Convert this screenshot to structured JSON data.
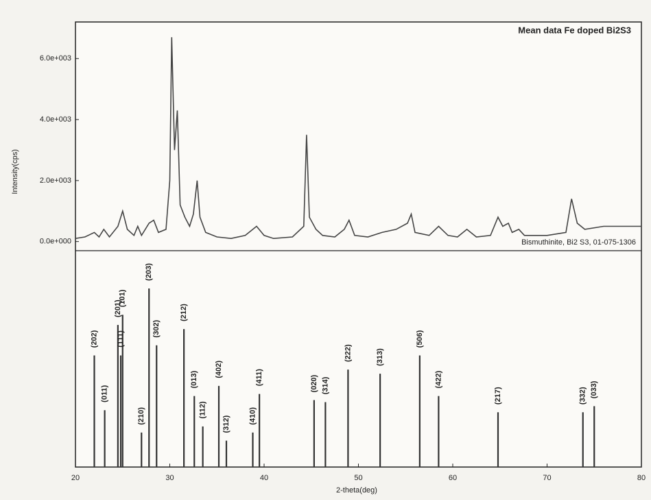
{
  "chart_data": [
    {
      "type": "line",
      "title": "Mean data Fe doped Bi2S3",
      "ylabel": "Intensity(cps)",
      "ylim": [
        -300,
        7200
      ],
      "yticks": [
        {
          "value": 0,
          "label": "0.0e+000"
        },
        {
          "value": 2000,
          "label": "2.0e+003"
        },
        {
          "value": 4000,
          "label": "4.0e+003"
        },
        {
          "value": 6000,
          "label": "6.0e+003"
        }
      ],
      "x": [
        20,
        21,
        22,
        22.5,
        23,
        23.6,
        24.5,
        25,
        25.5,
        26.2,
        26.6,
        27,
        27.8,
        28.3,
        28.8,
        29.6,
        30,
        30.2,
        30.5,
        30.8,
        31.1,
        31.6,
        32.1,
        32.5,
        32.9,
        33.2,
        33.8,
        35,
        36.5,
        38,
        39.2,
        40,
        41,
        43,
        44.2,
        44.5,
        44.8,
        45.5,
        46.2,
        47.5,
        48.5,
        49,
        49.6,
        51,
        52.5,
        54,
        55.2,
        55.6,
        56,
        57.5,
        58.5,
        59.5,
        60.5,
        61.5,
        62.5,
        64,
        64.8,
        65.3,
        65.9,
        66.3,
        67,
        67.6,
        70,
        72,
        72.6,
        73.2,
        74,
        76,
        78,
        80
      ],
      "series": [
        {
          "name": "Bismuthinite, Bi2 S3, 01-075-1306",
          "color": "#444444",
          "values": [
            100,
            150,
            300,
            150,
            400,
            150,
            500,
            1000,
            400,
            200,
            500,
            200,
            600,
            700,
            300,
            400,
            2000,
            6700,
            3000,
            4300,
            1200,
            800,
            500,
            900,
            2000,
            800,
            300,
            150,
            100,
            200,
            500,
            200,
            100,
            150,
            500,
            3500,
            800,
            400,
            200,
            150,
            400,
            700,
            200,
            150,
            300,
            400,
            600,
            900,
            300,
            200,
            500,
            200,
            150,
            400,
            150,
            200,
            800,
            500,
            600,
            300,
            400,
            200,
            200,
            300,
            1400,
            600,
            400,
            500,
            500,
            500
          ]
        }
      ]
    },
    {
      "type": "stick",
      "xlabel": "2-theta(deg)",
      "xlim": [
        20,
        80
      ],
      "xticks": [
        20,
        30,
        40,
        50,
        60,
        70,
        80
      ],
      "color": "#333333",
      "x": [
        22,
        23.1,
        24.5,
        25,
        24.8,
        27,
        27.8,
        28.6,
        31.5,
        32.6,
        33.5,
        35.2,
        36,
        38.8,
        39.5,
        45.3,
        46.5,
        48.9,
        52.3,
        56.5,
        58.5,
        64.8,
        73.8,
        75
      ],
      "values": [
        55,
        28,
        70,
        75,
        55,
        17,
        88,
        60,
        68,
        35,
        20,
        40,
        13,
        17,
        36,
        33,
        32,
        48,
        46,
        55,
        35,
        27,
        27,
        30
      ],
      "labels": [
        "(202)",
        "(011)",
        "(201)",
        "(101)",
        "(111)",
        "(210)",
        "(203)",
        "(302)",
        "(212)",
        "(013)",
        "(112)",
        "(402)",
        "(312)",
        "(410)",
        "(411)",
        "(020)",
        "(314)",
        "(222)",
        "(313)",
        "(506)",
        "(422)",
        "(217)",
        "(332)",
        "(033)"
      ]
    }
  ]
}
